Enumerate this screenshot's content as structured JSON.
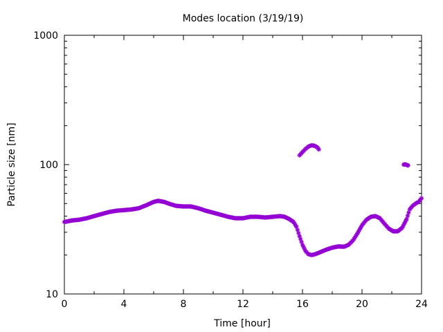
{
  "chart_data": {
    "type": "scatter",
    "title": "Modes location (3/19/19)",
    "xlabel": "Time [hour]",
    "ylabel": "Particle size [nm]",
    "xlim": [
      0,
      24
    ],
    "ylim": [
      10,
      1000
    ],
    "yscale": "log",
    "grid": false,
    "legend": "none",
    "marker_color": "#9400d3",
    "marker_symbol": "asterisk",
    "x_ticks": [
      0,
      4,
      8,
      12,
      16,
      20,
      24
    ],
    "x_tick_labels": [
      "0",
      "4",
      "8",
      "12",
      "16",
      "20",
      "24"
    ],
    "y_ticks": [
      10,
      100,
      1000
    ],
    "y_tick_labels": [
      "10",
      "100",
      "1000"
    ],
    "series": [
      {
        "values": [
          [
            0.0,
            36.0
          ],
          [
            0.5,
            37.0
          ],
          [
            1.0,
            37.5
          ],
          [
            1.5,
            38.5
          ],
          [
            2.0,
            40.0
          ],
          [
            2.5,
            41.5
          ],
          [
            3.0,
            43.0
          ],
          [
            3.5,
            44.0
          ],
          [
            4.0,
            44.5
          ],
          [
            4.5,
            45.0
          ],
          [
            5.0,
            46.0
          ],
          [
            5.5,
            48.5
          ],
          [
            6.0,
            51.5
          ],
          [
            6.3,
            52.5
          ],
          [
            6.7,
            51.5
          ],
          [
            7.0,
            50.0
          ],
          [
            7.5,
            48.0
          ],
          [
            8.0,
            47.5
          ],
          [
            8.5,
            47.5
          ],
          [
            9.0,
            46.0
          ],
          [
            9.5,
            44.0
          ],
          [
            10.0,
            42.5
          ],
          [
            10.5,
            41.0
          ],
          [
            11.0,
            39.5
          ],
          [
            11.5,
            38.5
          ],
          [
            12.0,
            38.5
          ],
          [
            12.5,
            39.5
          ],
          [
            13.0,
            39.5
          ],
          [
            13.5,
            39.0
          ],
          [
            14.0,
            39.5
          ],
          [
            14.5,
            40.0
          ],
          [
            14.8,
            39.5
          ],
          [
            15.1,
            38.0
          ],
          [
            15.4,
            36.0
          ],
          [
            15.6,
            33.0
          ],
          [
            15.8,
            28.0
          ],
          [
            16.0,
            24.0
          ],
          [
            16.2,
            21.5
          ],
          [
            16.4,
            20.3
          ],
          [
            16.6,
            20.0
          ],
          [
            16.8,
            20.2
          ],
          [
            17.0,
            20.6
          ],
          [
            17.3,
            21.3
          ],
          [
            17.6,
            22.0
          ],
          [
            18.0,
            22.8
          ],
          [
            18.4,
            23.3
          ],
          [
            18.8,
            23.2
          ],
          [
            19.1,
            24.0
          ],
          [
            19.4,
            26.0
          ],
          [
            19.7,
            29.5
          ],
          [
            20.0,
            34.0
          ],
          [
            20.3,
            37.5
          ],
          [
            20.6,
            39.5
          ],
          [
            20.9,
            40.0
          ],
          [
            21.2,
            38.5
          ],
          [
            21.5,
            35.0
          ],
          [
            21.8,
            32.0
          ],
          [
            22.1,
            30.5
          ],
          [
            22.4,
            30.5
          ],
          [
            22.7,
            32.5
          ],
          [
            23.0,
            38.0
          ],
          [
            23.2,
            45.0
          ],
          [
            23.4,
            48.0
          ],
          [
            23.6,
            50.0
          ],
          [
            23.8,
            51.5
          ],
          [
            24.0,
            55.0
          ]
        ]
      },
      {
        "values": [
          [
            15.8,
            118.0
          ],
          [
            16.0,
            125.0
          ],
          [
            16.2,
            132.0
          ],
          [
            16.4,
            138.0
          ],
          [
            16.6,
            141.0
          ],
          [
            16.8,
            140.0
          ],
          [
            17.0,
            136.0
          ],
          [
            17.1,
            131.0
          ]
        ]
      },
      {
        "values": [
          [
            22.8,
            100.0
          ],
          [
            22.9,
            100.5
          ],
          [
            23.0,
            99.5
          ],
          [
            23.1,
            98.5
          ]
        ]
      }
    ]
  }
}
